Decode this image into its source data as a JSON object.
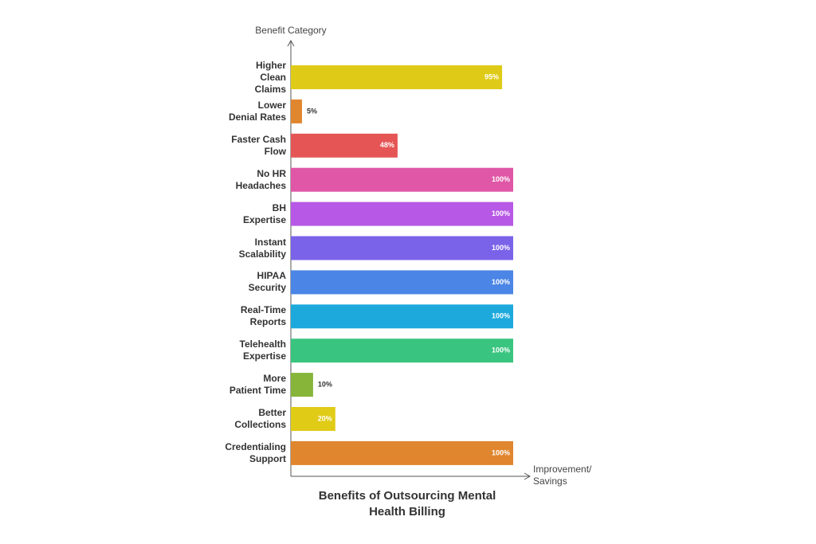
{
  "chart_data": {
    "type": "hbar",
    "title": "Benefits of Outsourcing Mental Health Billing",
    "y_label": "Benefit Category",
    "x_label": "Improvement/Savings",
    "categories": [
      "Higher\nClean\nClaims",
      "Lower\nDenial Rates",
      "Faster Cash\nFlow",
      "No HR\nHeadaches",
      "BH\nExpertise",
      "Instant\nScalability",
      "HIPAA\nSecurity",
      "Real-Time\nReports",
      "Telehealth\nExpertise",
      "More\nPatient Time",
      "Better\nCollections",
      "Credentialing\nSupport"
    ],
    "values": [
      95,
      5,
      48,
      100,
      100,
      100,
      100,
      100,
      100,
      10,
      20,
      100
    ],
    "value_labels": [
      "95%",
      "5%",
      "48%",
      "100%",
      "100%",
      "100%",
      "100%",
      "100%",
      "100%",
      "10%",
      "20%",
      "100%"
    ],
    "colors": [
      "#dfcb17",
      "#e0862e",
      "#e65555",
      "#df57a6",
      "#b758e6",
      "#7b63e9",
      "#4b85e6",
      "#1da9dc",
      "#39c57f",
      "#86b53a",
      "#e0cb17",
      "#e0862e"
    ],
    "xlim": [
      0,
      100
    ]
  }
}
